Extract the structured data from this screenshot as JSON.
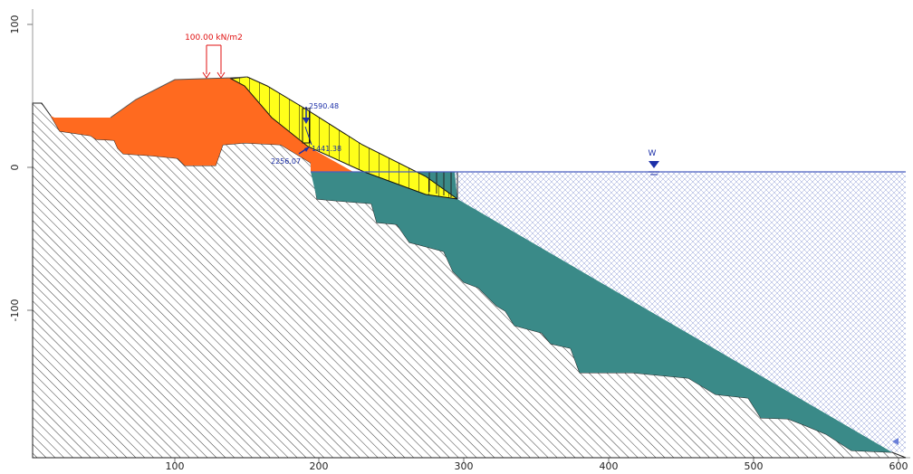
{
  "axes": {
    "x_ticks": [
      "100",
      "200",
      "300",
      "400",
      "500",
      "600"
    ],
    "y_ticks": [
      "100",
      "0",
      "-100"
    ]
  },
  "load": {
    "label": "100.00 kN/m2",
    "color": "#e01010"
  },
  "water": {
    "label": "W",
    "color": "#1c2fa8"
  },
  "forces": {
    "top": "2590.48",
    "middle": "1441.38",
    "left": "2256.07"
  },
  "colors": {
    "embankment": "#ff6a1f",
    "slide_mass": "#ffff1a",
    "submerged_layer": "#3a8a88",
    "water_line": "#4a5fc0",
    "hatch": "#3a3a3a",
    "axis": "#9a9a9a"
  }
}
